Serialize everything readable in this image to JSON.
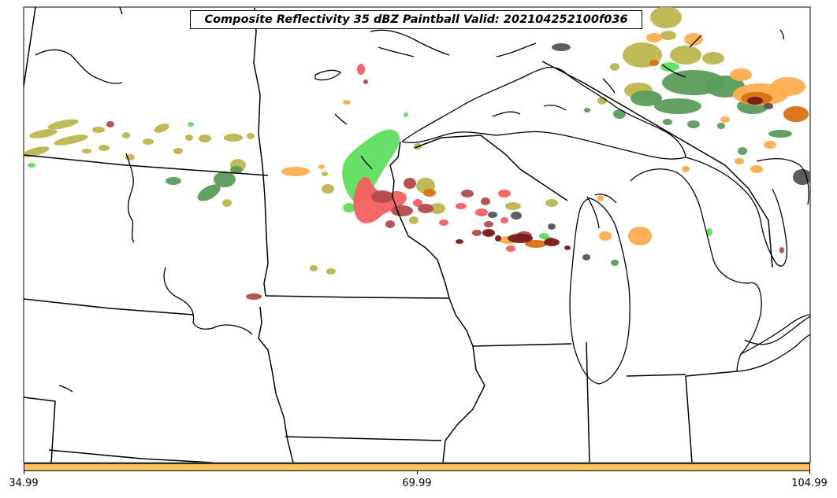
{
  "title": "Composite Reflectivity 35 dBZ Paintball Valid: 202104252100f036",
  "colorbar": {
    "color": "#ffc15e",
    "tick_labels": [
      "34.99",
      "69.99",
      "104.99"
    ]
  },
  "paintball_colors": {
    "olive": "#bdb54e",
    "light-green": "#5fde5f",
    "green": "#5a9c5a",
    "red": "#f55f5f",
    "dark-red": "#b34b4b",
    "maroon": "#7a1a1a",
    "orange": "#ffad4f",
    "dark-orange": "#d97012",
    "dark-gray": "#555555"
  }
}
